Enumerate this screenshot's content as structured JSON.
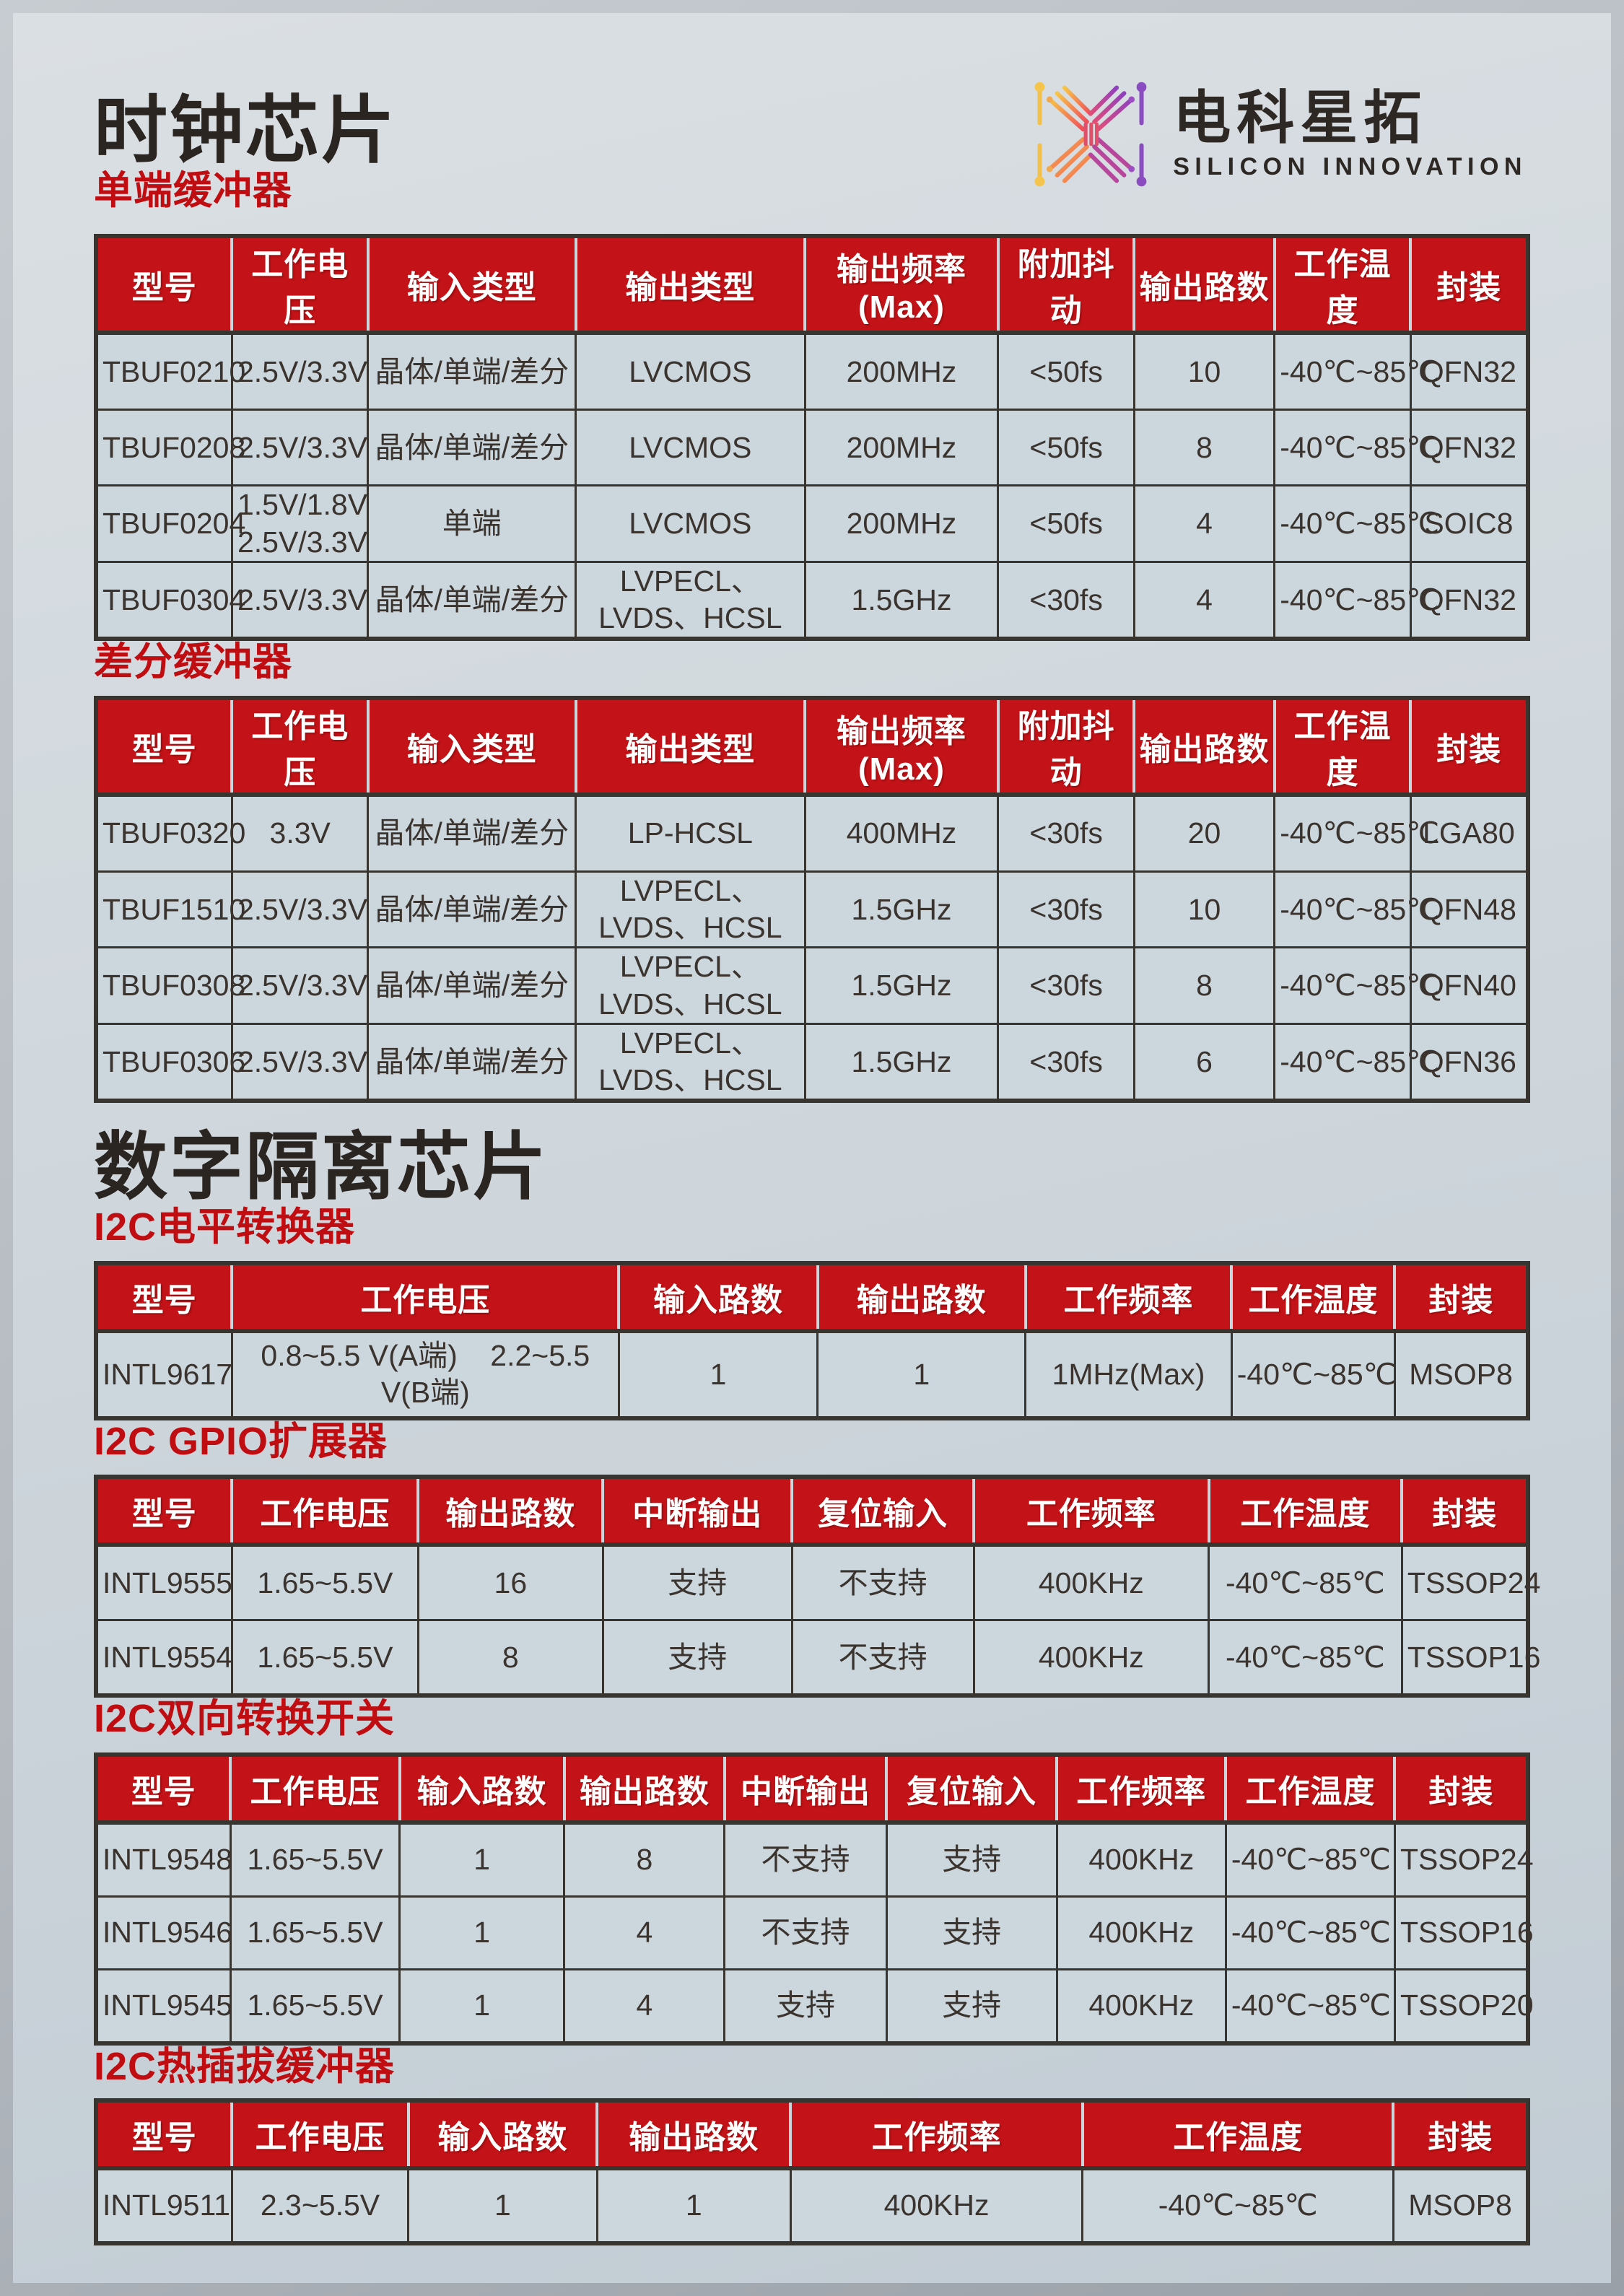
{
  "logo": {
    "name": "电科星拓",
    "tagline": "SILICON INNOVATION",
    "mark_colors": [
      "#f7c548",
      "#ef4e5b",
      "#e0506a",
      "#8f3fbf"
    ]
  },
  "sections": [
    {
      "title": "时钟芯片"
    },
    {
      "title": "数字隔离芯片"
    }
  ],
  "colors": {
    "header_red": "#c31318",
    "subtitle_red": "#c00d12",
    "title_dark": "#2b2522",
    "cell_bg": "#ccd6dd",
    "table_border": "#38342f",
    "page_bg": "#ccd4da"
  },
  "tables": [
    {
      "subtitle": "单端缓冲器",
      "headers": [
        "型号",
        "工作电压",
        "输入类型",
        "输出类型",
        "输出频率(Max)",
        "附加抖动",
        "输出路数",
        "工作温度",
        "封装"
      ],
      "widths": [
        9.5,
        9.5,
        14.5,
        16,
        13.5,
        9.5,
        9.8,
        9.5,
        8.2
      ],
      "rows": [
        [
          "TBUF0210",
          "2.5V/3.3V",
          "晶体/单端/差分",
          "LVCMOS",
          "200MHz",
          "<50fs",
          "10",
          "-40℃~85℃",
          "QFN32"
        ],
        [
          "TBUF0208",
          "2.5V/3.3V",
          "晶体/单端/差分",
          "LVCMOS",
          "200MHz",
          "<50fs",
          "8",
          "-40℃~85℃",
          "QFN32"
        ],
        [
          "TBUF0204",
          "1.5V/1.8V\n2.5V/3.3V",
          "单端",
          "LVCMOS",
          "200MHz",
          "<50fs",
          "4",
          "-40℃~85℃",
          "SOIC8"
        ],
        [
          "TBUF0304",
          "2.5V/3.3V",
          "晶体/单端/差分",
          "LVPECL、LVDS、HCSL",
          "1.5GHz",
          "<30fs",
          "4",
          "-40℃~85℃",
          "QFN32"
        ]
      ]
    },
    {
      "subtitle": "差分缓冲器",
      "headers": [
        "型号",
        "工作电压",
        "输入类型",
        "输出类型",
        "输出频率(Max)",
        "附加抖动",
        "输出路数",
        "工作温度",
        "封装"
      ],
      "widths": [
        9.5,
        9.5,
        14.5,
        16,
        13.5,
        9.5,
        9.8,
        9.5,
        8.2
      ],
      "rows": [
        [
          "TBUF0320",
          "3.3V",
          "晶体/单端/差分",
          "LP-HCSL",
          "400MHz",
          "<30fs",
          "20",
          "-40℃~85℃",
          "LGA80"
        ],
        [
          "TBUF1510",
          "2.5V/3.3V",
          "晶体/单端/差分",
          "LVPECL、LVDS、HCSL",
          "1.5GHz",
          "<30fs",
          "10",
          "-40℃~85℃",
          "QFN48"
        ],
        [
          "TBUF0308",
          "2.5V/3.3V",
          "晶体/单端/差分",
          "LVPECL、LVDS、HCSL",
          "1.5GHz",
          "<30fs",
          "8",
          "-40℃~85℃",
          "QFN40"
        ],
        [
          "TBUF0306",
          "2.5V/3.3V",
          "晶体/单端/差分",
          "LVPECL、LVDS、HCSL",
          "1.5GHz",
          "<30fs",
          "6",
          "-40℃~85℃",
          "QFN36"
        ]
      ]
    },
    {
      "subtitle": "I2C电平转换器",
      "headers": [
        "型号",
        "工作电压",
        "输入路数",
        "输出路数",
        "工作频率",
        "工作温度",
        "封装"
      ],
      "widths": [
        9.5,
        27,
        13.9,
        14.5,
        14.4,
        11.4,
        9.3
      ],
      "rows": [
        [
          "INTL9617",
          "0.8~5.5 V(A端)    2.2~5.5 V(B端)",
          "1",
          "1",
          "1MHz(Max)",
          "-40℃~85℃",
          "MSOP8"
        ]
      ]
    },
    {
      "subtitle": "I2C GPIO扩展器",
      "headers": [
        "型号",
        "工作电压",
        "输出路数",
        "中断输出",
        "复位输入",
        "工作频率",
        "工作温度",
        "封装"
      ],
      "widths": [
        9.5,
        13,
        12.9,
        13.2,
        12.7,
        16.4,
        13.5,
        8.8
      ],
      "rows": [
        [
          "INTL9555",
          "1.65~5.5V",
          "16",
          "支持",
          "不支持",
          "400KHz",
          "-40℃~85℃",
          "TSSOP24"
        ],
        [
          "INTL9554",
          "1.65~5.5V",
          "8",
          "支持",
          "不支持",
          "400KHz",
          "-40℃~85℃",
          "TSSOP16"
        ]
      ]
    },
    {
      "subtitle": "I2C双向转换开关",
      "headers": [
        "型号",
        "工作电压",
        "输入路数",
        "输出路数",
        "中断输出",
        "复位输入",
        "工作频率",
        "工作温度",
        "封装"
      ],
      "widths": [
        9.4,
        11.8,
        11.5,
        11.2,
        11.3,
        11.9,
        11.8,
        11.8,
        9.3
      ],
      "rows": [
        [
          "INTL9548",
          "1.65~5.5V",
          "1",
          "8",
          "不支持",
          "支持",
          "400KHz",
          "-40℃~85℃",
          "TSSOP24"
        ],
        [
          "INTL9546",
          "1.65~5.5V",
          "1",
          "4",
          "不支持",
          "支持",
          "400KHz",
          "-40℃~85℃",
          "TSSOP16"
        ],
        [
          "INTL9545",
          "1.65~5.5V",
          "1",
          "4",
          "支持",
          "支持",
          "400KHz",
          "-40℃~85℃",
          "TSSOP20"
        ]
      ]
    },
    {
      "subtitle": "I2C热插拔缓冲器",
      "headers": [
        "型号",
        "工作电压",
        "输入路数",
        "输出路数",
        "工作频率",
        "工作温度",
        "封装"
      ],
      "widths": [
        9.5,
        12.3,
        13.2,
        13.5,
        20.4,
        21.7,
        9.4
      ],
      "rows": [
        [
          "INTL9511",
          "2.3~5.5V",
          "1",
          "1",
          "400KHz",
          "-40℃~85℃",
          "MSOP8"
        ]
      ]
    }
  ]
}
